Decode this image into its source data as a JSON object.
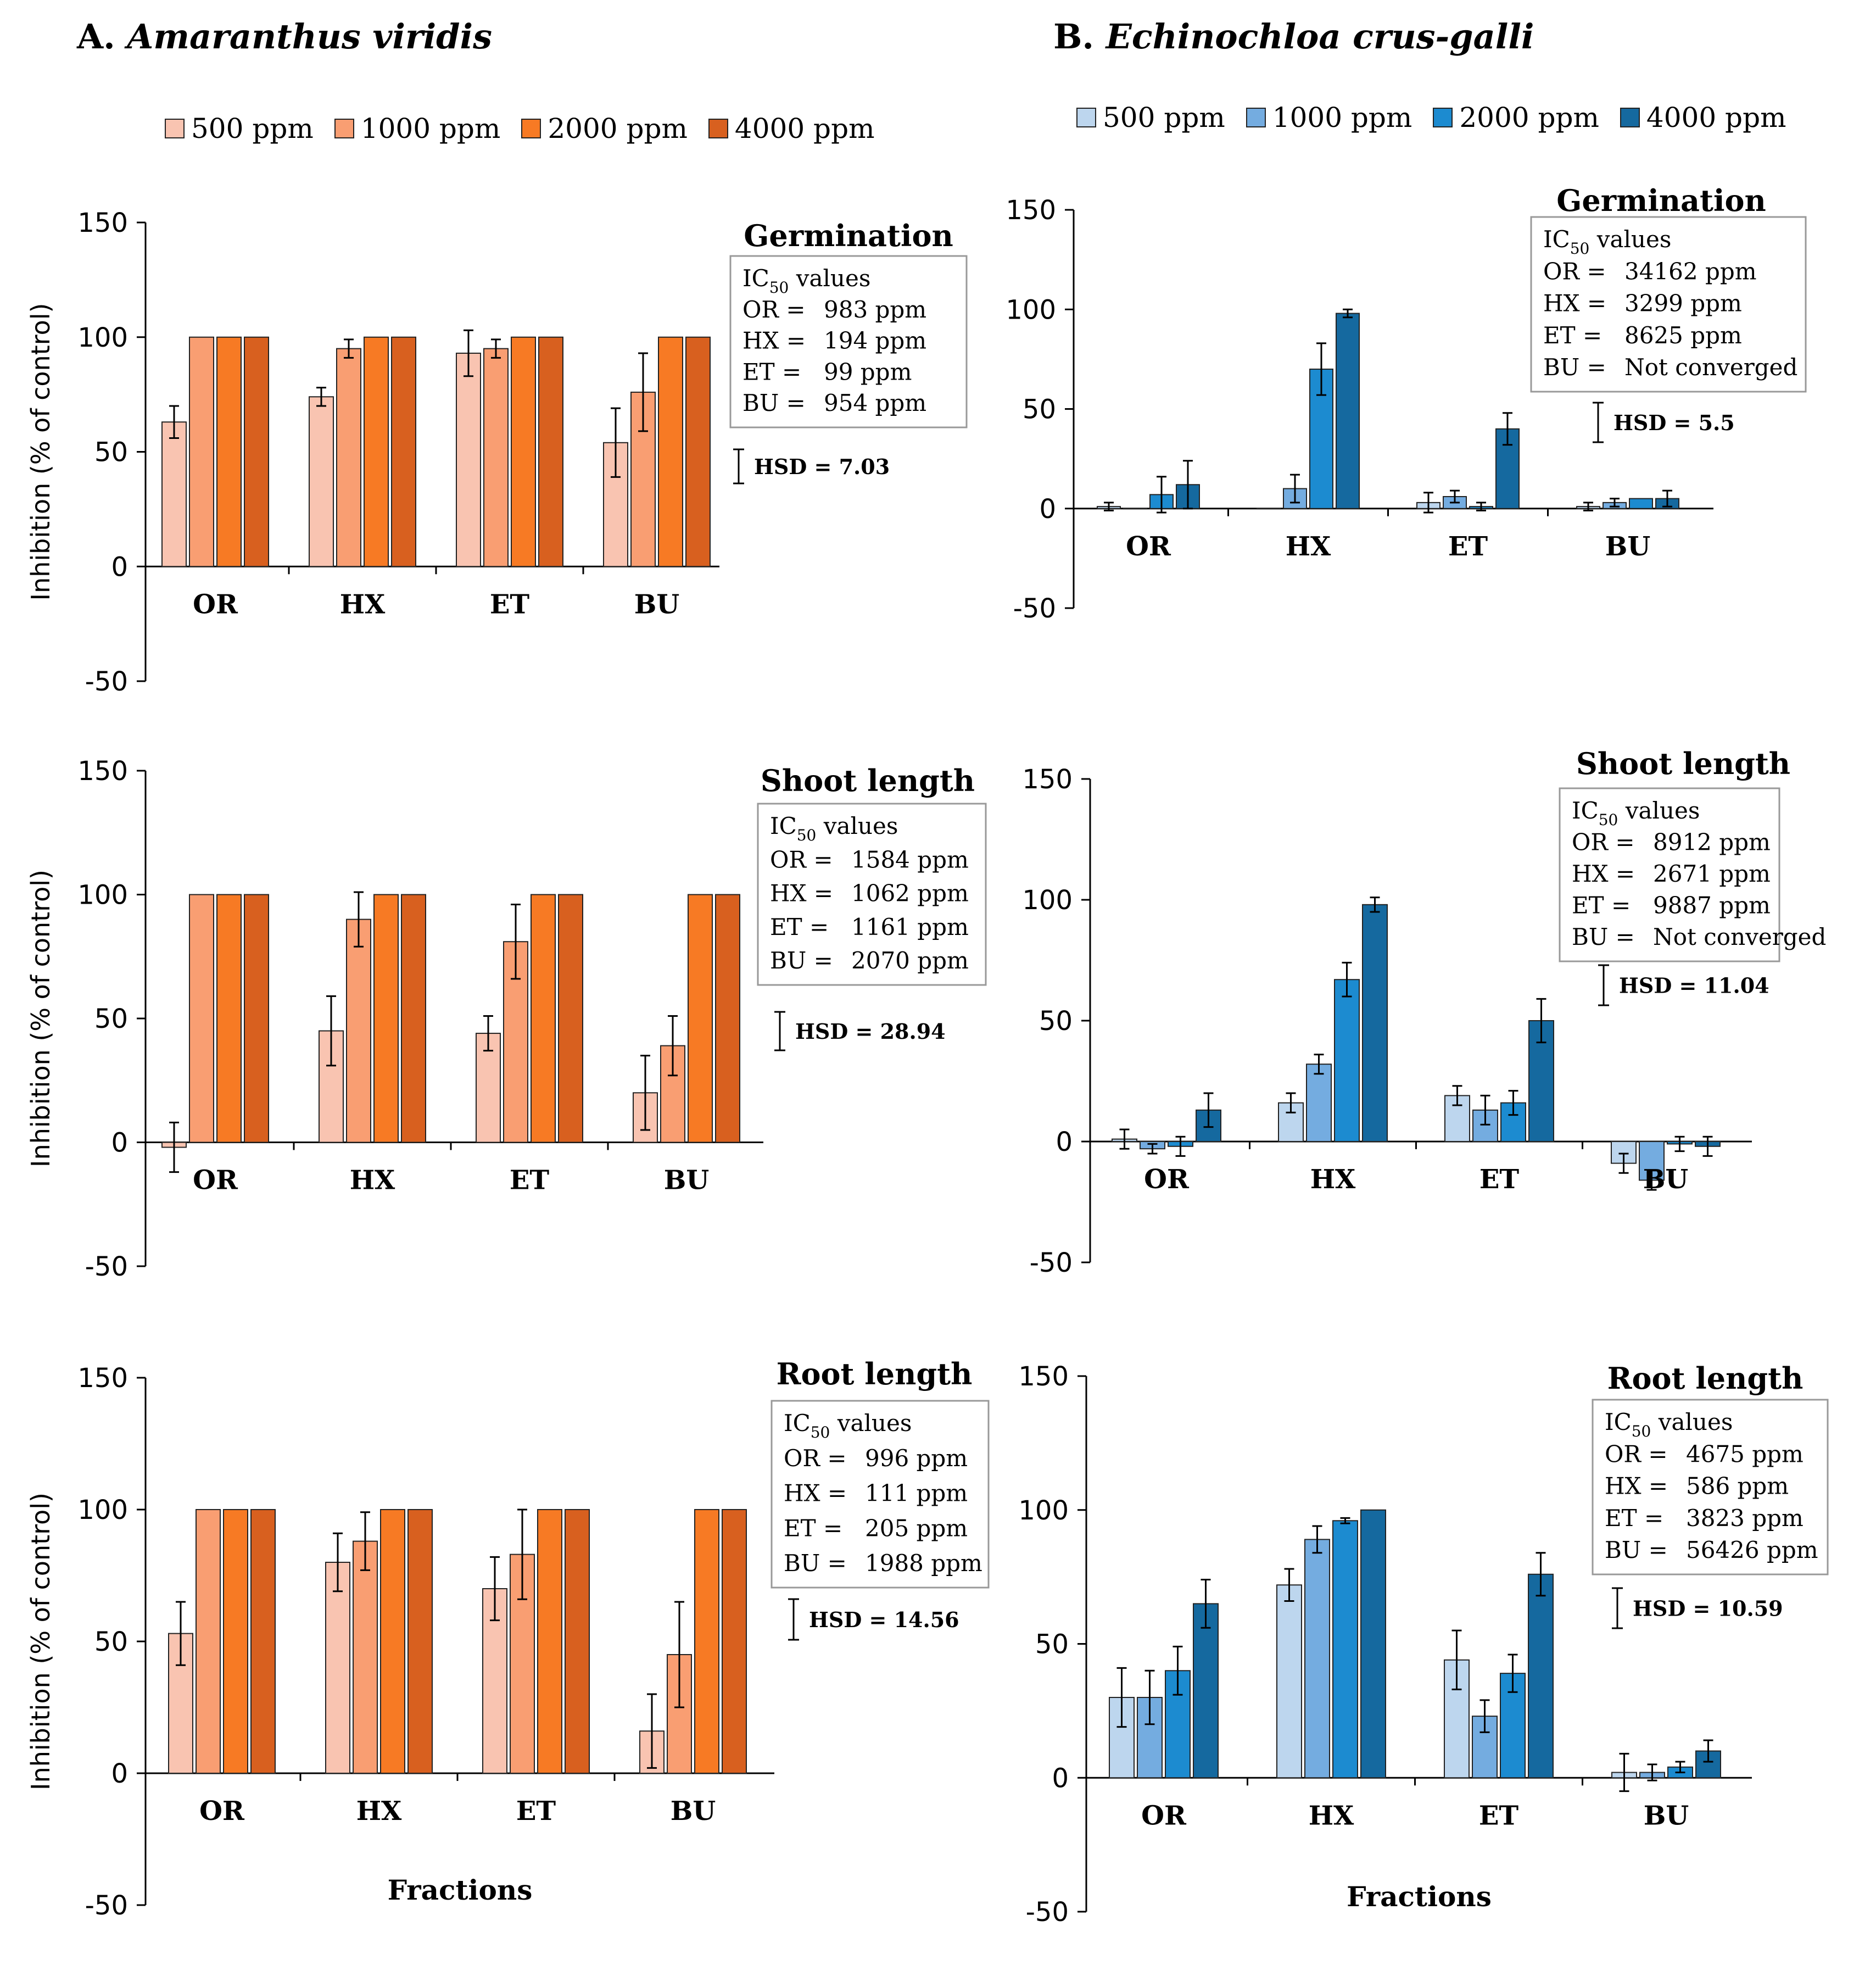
{
  "panels": {
    "A": {
      "letter": "A.",
      "species": "Amaranthus viridis"
    },
    "B": {
      "letter": "B.",
      "species": "Echinochloa crus-galli"
    }
  },
  "legend_labels": [
    "500 ppm",
    "1000 ppm",
    "2000 ppm",
    "4000 ppm"
  ],
  "colors": {
    "A": [
      "#f9c4b1",
      "#f99e72",
      "#f77a24",
      "#d8601f"
    ],
    "B": [
      "#bdd6ee",
      "#74ace0",
      "#1c8bd0",
      "#15699f"
    ]
  },
  "chart_data": [
    {
      "id": "A-germination",
      "panel": "A",
      "type": "bar",
      "title": "Germination",
      "ylabel": "Inhibition (% of control)",
      "xlabel": "",
      "ylim": [
        -50,
        150
      ],
      "yticks": [
        150,
        100,
        50,
        0,
        -50
      ],
      "categories": [
        "OR",
        "HX",
        "ET",
        "BU"
      ],
      "series": [
        {
          "name": "500 ppm",
          "values": [
            63,
            74,
            93,
            54
          ],
          "errors": [
            7,
            4,
            10,
            15
          ]
        },
        {
          "name": "1000 ppm",
          "values": [
            100,
            95,
            95,
            76
          ],
          "errors": [
            0,
            4,
            4,
            17
          ]
        },
        {
          "name": "2000 ppm",
          "values": [
            100,
            100,
            100,
            100
          ],
          "errors": [
            0,
            0,
            0,
            0
          ]
        },
        {
          "name": "4000 ppm",
          "values": [
            100,
            100,
            100,
            100
          ],
          "errors": [
            0,
            0,
            0,
            0
          ]
        }
      ],
      "ic50_header": "IC50 values",
      "ic50": [
        {
          "frac": "OR",
          "value": "983 ppm"
        },
        {
          "frac": "HX",
          "value": "194 ppm"
        },
        {
          "frac": "ET",
          "value": "99 ppm"
        },
        {
          "frac": "BU",
          "value": "954 ppm"
        }
      ],
      "hsd_label": "HSD = 7.03",
      "hsd_value": 7.03
    },
    {
      "id": "A-shoot",
      "panel": "A",
      "type": "bar",
      "title": "Shoot length",
      "ylabel": "Inhibition (% of control)",
      "xlabel": "",
      "ylim": [
        -50,
        150
      ],
      "yticks": [
        150,
        100,
        50,
        0,
        -50
      ],
      "categories": [
        "OR",
        "HX",
        "ET",
        "BU"
      ],
      "series": [
        {
          "name": "500 ppm",
          "values": [
            -2,
            45,
            44,
            20
          ],
          "errors": [
            10,
            14,
            7,
            15
          ]
        },
        {
          "name": "1000 ppm",
          "values": [
            100,
            90,
            81,
            39
          ],
          "errors": [
            0,
            11,
            15,
            12
          ]
        },
        {
          "name": "2000 ppm",
          "values": [
            100,
            100,
            100,
            100
          ],
          "errors": [
            0,
            0,
            0,
            0
          ]
        },
        {
          "name": "4000 ppm",
          "values": [
            100,
            100,
            100,
            100
          ],
          "errors": [
            0,
            0,
            0,
            0
          ]
        }
      ],
      "ic50_header": "IC50 values",
      "ic50": [
        {
          "frac": "OR",
          "value": "1584 ppm"
        },
        {
          "frac": "HX",
          "value": "1062 ppm"
        },
        {
          "frac": "ET",
          "value": "1161 ppm"
        },
        {
          "frac": "BU",
          "value": "2070 ppm"
        }
      ],
      "hsd_label": "HSD = 28.94",
      "hsd_value": 28.94
    },
    {
      "id": "A-root",
      "panel": "A",
      "type": "bar",
      "title": "Root length",
      "ylabel": "Inhibition (% of control)",
      "xlabel": "Fractions",
      "ylim": [
        -50,
        150
      ],
      "yticks": [
        150,
        100,
        50,
        0,
        -50
      ],
      "categories": [
        "OR",
        "HX",
        "ET",
        "BU"
      ],
      "series": [
        {
          "name": "500 ppm",
          "values": [
            53,
            80,
            70,
            16
          ],
          "errors": [
            12,
            11,
            12,
            14
          ]
        },
        {
          "name": "1000 ppm",
          "values": [
            100,
            88,
            83,
            45
          ],
          "errors": [
            0,
            11,
            17,
            20
          ]
        },
        {
          "name": "2000 ppm",
          "values": [
            100,
            100,
            100,
            100
          ],
          "errors": [
            0,
            0,
            0,
            0
          ]
        },
        {
          "name": "4000 ppm",
          "values": [
            100,
            100,
            100,
            100
          ],
          "errors": [
            0,
            0,
            0,
            0
          ]
        }
      ],
      "ic50_header": "IC50 values",
      "ic50": [
        {
          "frac": "OR",
          "value": "996 ppm"
        },
        {
          "frac": "HX",
          "value": "111 ppm"
        },
        {
          "frac": "ET",
          "value": "205 ppm"
        },
        {
          "frac": "BU",
          "value": "1988 ppm"
        }
      ],
      "hsd_label": "HSD = 14.56",
      "hsd_value": 14.56
    },
    {
      "id": "B-germination",
      "panel": "B",
      "type": "bar",
      "title": "Germination",
      "ylabel": "",
      "xlabel": "",
      "ylim": [
        -50,
        150
      ],
      "yticks": [
        150,
        100,
        50,
        0,
        -50
      ],
      "categories": [
        "OR",
        "HX",
        "ET",
        "BU"
      ],
      "series": [
        {
          "name": "500 ppm",
          "values": [
            1,
            0,
            3,
            1
          ],
          "errors": [
            2,
            0,
            5,
            2
          ]
        },
        {
          "name": "1000 ppm",
          "values": [
            0,
            10,
            6,
            3
          ],
          "errors": [
            0,
            7,
            3,
            2
          ]
        },
        {
          "name": "2000 ppm",
          "values": [
            7,
            70,
            1,
            5
          ],
          "errors": [
            9,
            13,
            2,
            0
          ]
        },
        {
          "name": "4000 ppm",
          "values": [
            12,
            98,
            40,
            5
          ],
          "errors": [
            12,
            2,
            8,
            4
          ]
        }
      ],
      "ic50_header": "IC50 values",
      "ic50": [
        {
          "frac": "OR",
          "value": "34162 ppm"
        },
        {
          "frac": "HX",
          "value": "3299 ppm"
        },
        {
          "frac": "ET",
          "value": "8625 ppm"
        },
        {
          "frac": "BU",
          "value": "Not converged"
        }
      ],
      "hsd_label": "HSD = 5.5",
      "hsd_value": 5.5
    },
    {
      "id": "B-shoot",
      "panel": "B",
      "type": "bar",
      "title": "Shoot length",
      "ylabel": "",
      "xlabel": "",
      "ylim": [
        -50,
        150
      ],
      "yticks": [
        150,
        100,
        50,
        0,
        -50
      ],
      "categories": [
        "OR",
        "HX",
        "ET",
        "BU"
      ],
      "series": [
        {
          "name": "500 ppm",
          "values": [
            1,
            16,
            19,
            -9
          ],
          "errors": [
            4,
            4,
            4,
            4
          ]
        },
        {
          "name": "1000 ppm",
          "values": [
            -3,
            32,
            13,
            -16
          ],
          "errors": [
            2,
            4,
            6,
            4
          ]
        },
        {
          "name": "2000 ppm",
          "values": [
            -2,
            67,
            16,
            -1
          ],
          "errors": [
            4,
            7,
            5,
            3
          ]
        },
        {
          "name": "4000 ppm",
          "values": [
            13,
            98,
            50,
            -2
          ],
          "errors": [
            7,
            3,
            9,
            4
          ]
        }
      ],
      "ic50_header": "IC50 values",
      "ic50": [
        {
          "frac": "OR",
          "value": "8912 ppm"
        },
        {
          "frac": "HX",
          "value": "2671 ppm"
        },
        {
          "frac": "ET",
          "value": "9887 ppm"
        },
        {
          "frac": "BU",
          "value": "Not converged"
        }
      ],
      "hsd_label": "HSD = 11.04",
      "hsd_value": 11.04
    },
    {
      "id": "B-root",
      "panel": "B",
      "type": "bar",
      "title": "Root length",
      "ylabel": "",
      "xlabel": "Fractions",
      "ylim": [
        -50,
        150
      ],
      "yticks": [
        150,
        100,
        50,
        0,
        -50
      ],
      "categories": [
        "OR",
        "HX",
        "ET",
        "BU"
      ],
      "series": [
        {
          "name": "500 ppm",
          "values": [
            30,
            72,
            44,
            2
          ],
          "errors": [
            11,
            6,
            11,
            7
          ]
        },
        {
          "name": "1000 ppm",
          "values": [
            30,
            89,
            23,
            2
          ],
          "errors": [
            10,
            5,
            6,
            3
          ]
        },
        {
          "name": "2000 ppm",
          "values": [
            40,
            96,
            39,
            4
          ],
          "errors": [
            9,
            1,
            7,
            2
          ]
        },
        {
          "name": "4000 ppm",
          "values": [
            65,
            100,
            76,
            10
          ],
          "errors": [
            9,
            0,
            8,
            4
          ]
        }
      ],
      "ic50_header": "IC50 values",
      "ic50": [
        {
          "frac": "OR",
          "value": "4675 ppm"
        },
        {
          "frac": "HX",
          "value": "586 ppm"
        },
        {
          "frac": "ET",
          "value": "3823 ppm"
        },
        {
          "frac": "BU",
          "value": "56426 ppm"
        }
      ],
      "hsd_label": "HSD = 10.59",
      "hsd_value": 10.59
    }
  ]
}
